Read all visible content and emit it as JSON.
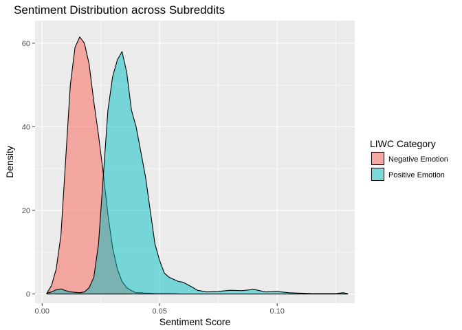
{
  "chart_data": {
    "type": "area",
    "title": "Sentiment Distribution across Subreddits",
    "xlabel": "Sentiment Score",
    "ylabel": "Density",
    "xlim": [
      -0.003,
      0.133
    ],
    "ylim": [
      -2.2,
      65.4
    ],
    "x_ticks": [
      0.0,
      0.05,
      0.1
    ],
    "x_tick_labels": [
      "0.00",
      "0.05",
      "0.10"
    ],
    "y_ticks": [
      0,
      20,
      40,
      60
    ],
    "y_tick_labels": [
      "0",
      "20",
      "40",
      "60"
    ],
    "grid": true,
    "legend": {
      "title": "LIWC Category",
      "placement": "right"
    },
    "series": [
      {
        "name": "Negative Emotion",
        "color": "#F8766D",
        "opacity": 0.6,
        "x": [
          0.002,
          0.004,
          0.006,
          0.008,
          0.01,
          0.012,
          0.014,
          0.016,
          0.018,
          0.02,
          0.022,
          0.024,
          0.026,
          0.028,
          0.03,
          0.032,
          0.034,
          0.036,
          0.038,
          0.04,
          0.042,
          0.044,
          0.046,
          0.048,
          0.05,
          0.055,
          0.06,
          0.07,
          0.08,
          0.09,
          0.1,
          0.11,
          0.12,
          0.13
        ],
        "y": [
          0.2,
          2.0,
          6.0,
          14.0,
          32.0,
          50.0,
          59.0,
          61.5,
          60.0,
          55.0,
          46.0,
          38.0,
          29.0,
          19.0,
          11.0,
          6.0,
          3.0,
          1.5,
          0.8,
          0.3,
          0.3,
          0.2,
          0.2,
          0.1,
          0.1,
          0.1,
          0.0,
          0.0,
          0.0,
          0.0,
          0.0,
          0.0,
          0.0,
          0.0
        ]
      },
      {
        "name": "Positive Emotion",
        "color": "#00BFC4",
        "opacity": 0.5,
        "x": [
          0.002,
          0.004,
          0.006,
          0.008,
          0.01,
          0.012,
          0.014,
          0.016,
          0.018,
          0.02,
          0.022,
          0.024,
          0.026,
          0.028,
          0.03,
          0.032,
          0.034,
          0.036,
          0.038,
          0.04,
          0.042,
          0.044,
          0.046,
          0.048,
          0.05,
          0.052,
          0.054,
          0.056,
          0.058,
          0.06,
          0.062,
          0.064,
          0.066,
          0.07,
          0.075,
          0.08,
          0.085,
          0.09,
          0.095,
          0.1,
          0.105,
          0.11,
          0.115,
          0.12,
          0.125,
          0.128,
          0.13
        ],
        "y": [
          0.2,
          0.5,
          1.0,
          1.2,
          0.8,
          0.5,
          0.4,
          0.3,
          0.5,
          1.5,
          4.0,
          12.0,
          28.0,
          44.0,
          52.0,
          56.0,
          58.0,
          53.0,
          44.0,
          40.0,
          34.0,
          28.0,
          20.0,
          12.0,
          8.0,
          5.0,
          4.0,
          3.5,
          3.0,
          2.8,
          2.2,
          1.6,
          0.9,
          0.5,
          0.6,
          0.9,
          0.8,
          1.1,
          0.5,
          0.6,
          0.3,
          0.2,
          0.1,
          0.1,
          0.1,
          0.3,
          0.1
        ]
      }
    ]
  }
}
